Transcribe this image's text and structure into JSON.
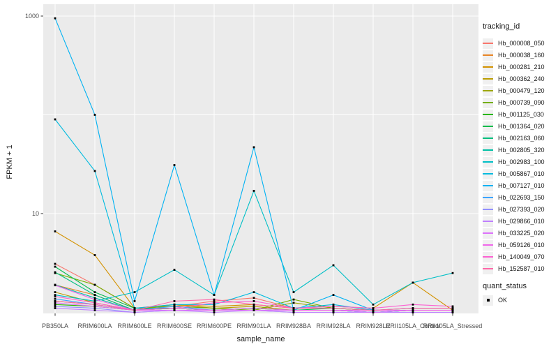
{
  "figure": {
    "background": "#ffffff",
    "panel_color": "#ebebeb",
    "grid_color": "#ffffff",
    "tick_color": "#333333",
    "tick_label_color": "#4d4d4d",
    "point_color": "#000000"
  },
  "chart_data": {
    "type": "line",
    "title": "",
    "xlabel": "sample_name",
    "ylabel": "FPKM + 1",
    "y_scale": "log10",
    "ylim": [
      1,
      1100
    ],
    "grid": true,
    "y_tick_labels": [
      {
        "label": "1000",
        "value": 1000
      },
      {
        "label": "10",
        "value": 10
      }
    ],
    "y_gridlines": [
      1000,
      100,
      10
    ],
    "categories": [
      "PB350LA",
      "RRIM600LA",
      "RRIM600LE",
      "RRIM600SE",
      "RRIM600PE",
      "RRIM901LA",
      "RRIM928BA",
      "RRIM928LA",
      "RRIM928LE",
      "RRII105LA_Control",
      "RRII105LA_Stressed"
    ],
    "legend": {
      "title": "tracking_id",
      "position": "right"
    },
    "quant_legend": {
      "title": "quant_status",
      "items": [
        {
          "label": "OK",
          "symbol": "black-square-point"
        }
      ]
    },
    "series": [
      {
        "name": "Hb_000008_050",
        "color": "#F8766D",
        "values": [
          3.1,
          1.9,
          1.1,
          1.15,
          1.3,
          1.4,
          1.1,
          1.1,
          1.05,
          1.1,
          1.1
        ]
      },
      {
        "name": "Hb_000038_160",
        "color": "#E88526",
        "values": [
          1.9,
          1.5,
          1.05,
          1.1,
          1.05,
          1.1,
          1.05,
          1.05,
          1.05,
          1.05,
          1.05
        ]
      },
      {
        "name": "Hb_000281_210",
        "color": "#D39200",
        "values": [
          6.6,
          3.8,
          1.1,
          1.2,
          1.15,
          1.2,
          1.1,
          1.15,
          1.1,
          2.0,
          1.05
        ]
      },
      {
        "name": "Hb_000362_240",
        "color": "#BB9D00",
        "values": [
          1.6,
          1.25,
          1.05,
          1.2,
          1.1,
          1.15,
          1.05,
          1.05,
          1.05,
          1.05,
          1.05
        ]
      },
      {
        "name": "Hb_000479_120",
        "color": "#9DA700",
        "values": [
          1.3,
          1.2,
          1.05,
          1.1,
          1.05,
          1.05,
          1.25,
          1.1,
          1.05,
          1.05,
          1.05
        ]
      },
      {
        "name": "Hb_000739_090",
        "color": "#75AF00",
        "values": [
          2.5,
          1.9,
          1.1,
          1.15,
          1.1,
          1.05,
          1.35,
          1.1,
          1.05,
          1.05,
          1.05
        ]
      },
      {
        "name": "Hb_001125_030",
        "color": "#2AB600",
        "values": [
          1.2,
          1.15,
          1.05,
          1.05,
          1.05,
          1.05,
          1.05,
          1.05,
          1.0,
          1.05,
          1.05
        ]
      },
      {
        "name": "Hb_001364_020",
        "color": "#00BB4B",
        "values": [
          2.9,
          1.6,
          1.1,
          1.1,
          1.05,
          1.1,
          1.05,
          1.1,
          1.05,
          1.05,
          1.05
        ]
      },
      {
        "name": "Hb_002163_060",
        "color": "#00BE7D",
        "values": [
          2.55,
          1.5,
          1.05,
          1.1,
          1.05,
          1.05,
          1.05,
          1.05,
          1.0,
          1.05,
          1.05
        ]
      },
      {
        "name": "Hb_002805_320",
        "color": "#00C0A5",
        "values": [
          1.9,
          1.4,
          1.05,
          1.05,
          1.05,
          1.1,
          1.05,
          1.05,
          1.0,
          1.05,
          1.05
        ]
      },
      {
        "name": "Hb_002983_100",
        "color": "#00BFC6",
        "values": [
          1.5,
          1.3,
          1.6,
          2.7,
          1.5,
          17,
          1.6,
          3.0,
          1.2,
          2.0,
          2.5
        ]
      },
      {
        "name": "Hb_005867_010",
        "color": "#00BBDF",
        "values": [
          90,
          27,
          1.1,
          1.2,
          1.2,
          1.6,
          1.1,
          1.2,
          1.05,
          1.1,
          1.1
        ]
      },
      {
        "name": "Hb_007127_010",
        "color": "#00B2F3",
        "values": [
          950,
          100,
          1.3,
          31,
          1.5,
          47,
          1.05,
          1.5,
          1.05,
          1.05,
          1.05
        ]
      },
      {
        "name": "Hb_022693_150",
        "color": "#3DA4FF",
        "values": [
          1.37,
          1.2,
          1.05,
          1.15,
          1.05,
          1.05,
          1.05,
          1.05,
          1.0,
          1.05,
          1.05
        ]
      },
      {
        "name": "Hb_027393_020",
        "color": "#9290FF",
        "values": [
          1.15,
          1.1,
          1.0,
          1.05,
          1.05,
          1.05,
          1.0,
          1.0,
          1.0,
          1.0,
          1.0
        ]
      },
      {
        "name": "Hb_029866_010",
        "color": "#BF80FF",
        "values": [
          1.1,
          1.05,
          1.0,
          1.05,
          1.0,
          1.05,
          1.0,
          1.0,
          1.0,
          1.0,
          1.0
        ]
      },
      {
        "name": "Hb_033225_020",
        "color": "#DD71FB",
        "values": [
          1.25,
          1.15,
          1.05,
          1.05,
          1.05,
          1.05,
          1.05,
          1.05,
          1.0,
          1.05,
          1.05
        ]
      },
      {
        "name": "Hb_059126_010",
        "color": "#F066EA",
        "values": [
          1.88,
          1.35,
          1.05,
          1.1,
          1.05,
          1.1,
          1.05,
          1.05,
          1.05,
          1.05,
          1.05
        ]
      },
      {
        "name": "Hb_140049_070",
        "color": "#FC61D2",
        "values": [
          1.45,
          1.25,
          1.05,
          1.1,
          1.25,
          1.3,
          1.1,
          1.15,
          1.1,
          1.2,
          1.15
        ]
      },
      {
        "name": "Hb_152587_010",
        "color": "#FF67A8",
        "values": [
          1.3,
          1.2,
          1.05,
          1.3,
          1.35,
          1.2,
          1.1,
          1.1,
          1.05,
          1.1,
          1.1
        ]
      }
    ]
  }
}
